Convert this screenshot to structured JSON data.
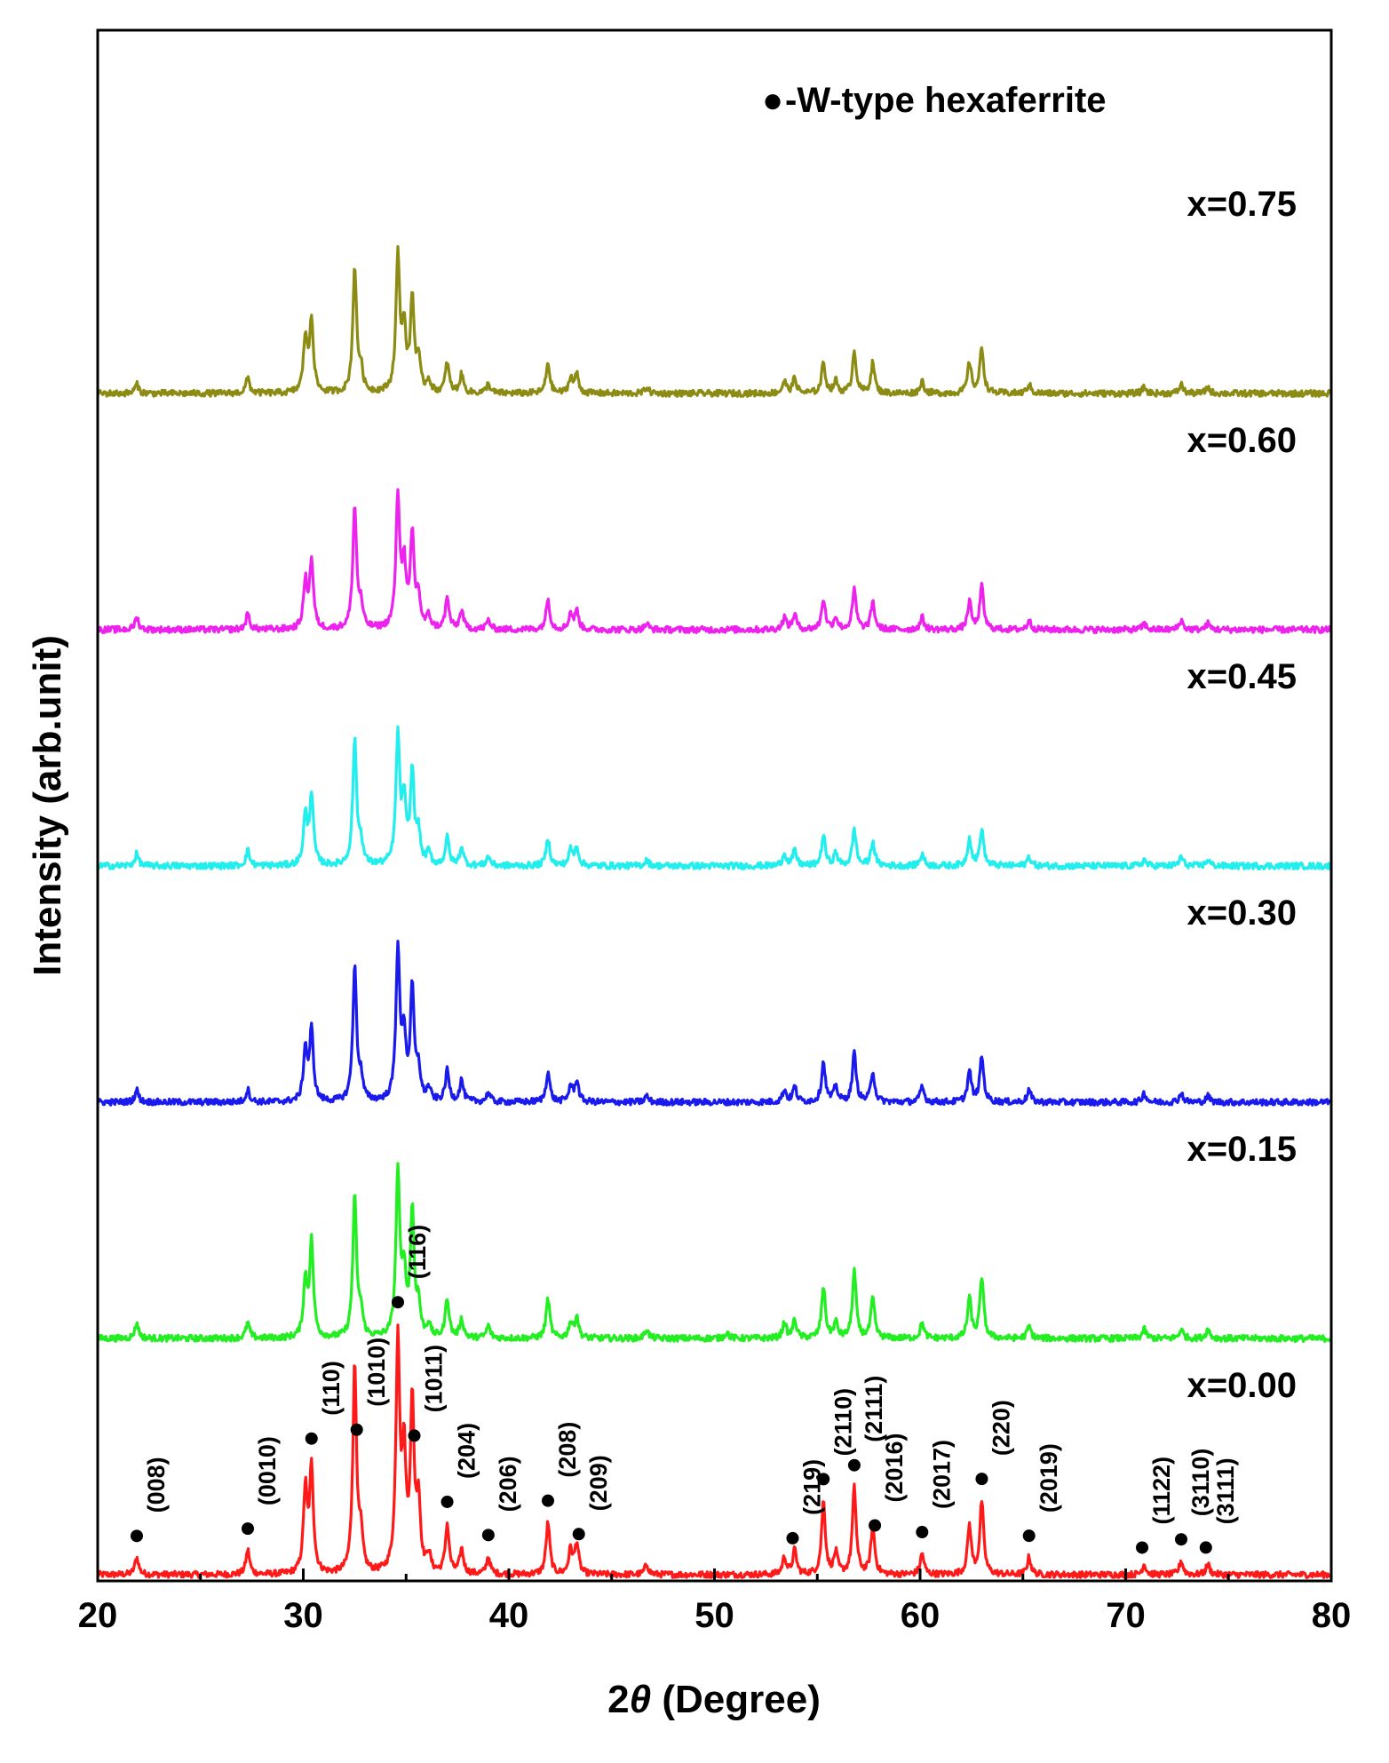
{
  "chart_data": {
    "type": "line",
    "title": "",
    "xlabel_prefix": "2",
    "xlabel_symbol": "θ",
    "xlabel_suffix": " (Degree)",
    "ylabel": "Intensity (arb.unit)",
    "xlim": [
      20,
      80
    ],
    "xticks": [
      20,
      30,
      40,
      50,
      60,
      70,
      80
    ],
    "x_minor_step": 5,
    "yticks_shown": false,
    "legend": {
      "marker": "●",
      "text": "-W-type hexaferrite",
      "position": "top-right"
    },
    "series": [
      {
        "name": "x=0.00",
        "color": "#ff1a1a",
        "offset": 0,
        "scale": 1.0,
        "peaks": [
          [
            21.9,
            0.05
          ],
          [
            27.3,
            0.07
          ],
          [
            30.1,
            0.24
          ],
          [
            30.4,
            0.3
          ],
          [
            32.5,
            0.6
          ],
          [
            32.8,
            0.1
          ],
          [
            34.6,
            0.67
          ],
          [
            34.9,
            0.32
          ],
          [
            35.3,
            0.48
          ],
          [
            35.6,
            0.2
          ],
          [
            36.1,
            0.05
          ],
          [
            37.0,
            0.14
          ],
          [
            37.7,
            0.07
          ],
          [
            39.0,
            0.05
          ],
          [
            41.9,
            0.15
          ],
          [
            43.0,
            0.07
          ],
          [
            43.3,
            0.09
          ],
          [
            46.7,
            0.03
          ],
          [
            53.4,
            0.05
          ],
          [
            53.9,
            0.07
          ],
          [
            55.3,
            0.21
          ],
          [
            55.9,
            0.06
          ],
          [
            56.8,
            0.25
          ],
          [
            57.7,
            0.14
          ],
          [
            60.1,
            0.06
          ],
          [
            62.4,
            0.14
          ],
          [
            63.0,
            0.21
          ],
          [
            65.3,
            0.05
          ],
          [
            70.9,
            0.03
          ],
          [
            72.7,
            0.04
          ],
          [
            74.0,
            0.03
          ]
        ]
      },
      {
        "name": "x=0.15",
        "color": "#22ee22",
        "offset": 1,
        "scale": 0.88,
        "peaks": [
          [
            21.9,
            0.05
          ],
          [
            27.3,
            0.05
          ],
          [
            30.1,
            0.18
          ],
          [
            30.4,
            0.31
          ],
          [
            32.5,
            0.46
          ],
          [
            32.8,
            0.08
          ],
          [
            34.6,
            0.54
          ],
          [
            34.9,
            0.2
          ],
          [
            35.3,
            0.41
          ],
          [
            35.6,
            0.1
          ],
          [
            36.1,
            0.04
          ],
          [
            37.0,
            0.13
          ],
          [
            37.7,
            0.06
          ],
          [
            39.0,
            0.04
          ],
          [
            41.9,
            0.13
          ],
          [
            43.0,
            0.05
          ],
          [
            43.3,
            0.07
          ],
          [
            46.7,
            0.03
          ],
          [
            50.6,
            0.02
          ],
          [
            53.4,
            0.05
          ],
          [
            53.9,
            0.06
          ],
          [
            55.3,
            0.17
          ],
          [
            55.9,
            0.05
          ],
          [
            56.8,
            0.22
          ],
          [
            57.7,
            0.13
          ],
          [
            60.1,
            0.05
          ],
          [
            62.4,
            0.13
          ],
          [
            63.0,
            0.2
          ],
          [
            65.3,
            0.04
          ],
          [
            70.9,
            0.03
          ],
          [
            72.7,
            0.03
          ],
          [
            74.0,
            0.03
          ]
        ]
      },
      {
        "name": "x=0.30",
        "color": "#1a1aee",
        "offset": 2,
        "scale": 0.88,
        "peaks": [
          [
            21.9,
            0.04
          ],
          [
            27.3,
            0.04
          ],
          [
            30.1,
            0.17
          ],
          [
            30.4,
            0.23
          ],
          [
            32.5,
            0.44
          ],
          [
            32.8,
            0.07
          ],
          [
            34.6,
            0.5
          ],
          [
            34.9,
            0.2
          ],
          [
            35.3,
            0.36
          ],
          [
            35.6,
            0.1
          ],
          [
            36.1,
            0.04
          ],
          [
            37.0,
            0.1
          ],
          [
            37.7,
            0.07
          ],
          [
            39.0,
            0.03
          ],
          [
            41.9,
            0.1
          ],
          [
            43.0,
            0.05
          ],
          [
            43.3,
            0.07
          ],
          [
            46.7,
            0.02
          ],
          [
            53.4,
            0.04
          ],
          [
            53.9,
            0.05
          ],
          [
            55.3,
            0.13
          ],
          [
            55.9,
            0.05
          ],
          [
            56.8,
            0.16
          ],
          [
            57.7,
            0.1
          ],
          [
            60.1,
            0.05
          ],
          [
            62.4,
            0.1
          ],
          [
            63.0,
            0.15
          ],
          [
            65.3,
            0.04
          ],
          [
            70.9,
            0.03
          ],
          [
            72.7,
            0.03
          ],
          [
            74.0,
            0.02
          ]
        ]
      },
      {
        "name": "x=0.45",
        "color": "#22eeee",
        "offset": 3,
        "scale": 0.88,
        "peaks": [
          [
            21.9,
            0.04
          ],
          [
            27.3,
            0.05
          ],
          [
            30.1,
            0.16
          ],
          [
            30.4,
            0.23
          ],
          [
            32.5,
            0.41
          ],
          [
            32.8,
            0.07
          ],
          [
            34.6,
            0.42
          ],
          [
            34.9,
            0.2
          ],
          [
            35.3,
            0.3
          ],
          [
            35.6,
            0.1
          ],
          [
            36.1,
            0.04
          ],
          [
            37.0,
            0.09
          ],
          [
            37.7,
            0.06
          ],
          [
            39.0,
            0.03
          ],
          [
            41.9,
            0.09
          ],
          [
            43.0,
            0.05
          ],
          [
            43.3,
            0.06
          ],
          [
            46.7,
            0.02
          ],
          [
            53.4,
            0.04
          ],
          [
            53.9,
            0.05
          ],
          [
            55.3,
            0.1
          ],
          [
            55.9,
            0.04
          ],
          [
            56.8,
            0.12
          ],
          [
            57.7,
            0.08
          ],
          [
            60.1,
            0.04
          ],
          [
            62.4,
            0.09
          ],
          [
            63.0,
            0.12
          ],
          [
            65.3,
            0.03
          ],
          [
            70.9,
            0.02
          ],
          [
            72.7,
            0.03
          ],
          [
            74.0,
            0.02
          ]
        ]
      },
      {
        "name": "x=0.60",
        "color": "#ee22ee",
        "offset": 4,
        "scale": 0.88,
        "peaks": [
          [
            21.9,
            0.04
          ],
          [
            27.3,
            0.05
          ],
          [
            30.1,
            0.15
          ],
          [
            30.4,
            0.22
          ],
          [
            32.5,
            0.4
          ],
          [
            32.8,
            0.07
          ],
          [
            34.6,
            0.43
          ],
          [
            34.9,
            0.2
          ],
          [
            35.3,
            0.3
          ],
          [
            35.6,
            0.1
          ],
          [
            36.1,
            0.04
          ],
          [
            37.0,
            0.1
          ],
          [
            37.7,
            0.06
          ],
          [
            39.0,
            0.03
          ],
          [
            41.9,
            0.1
          ],
          [
            43.0,
            0.05
          ],
          [
            43.3,
            0.06
          ],
          [
            46.7,
            0.02
          ],
          [
            53.4,
            0.04
          ],
          [
            53.9,
            0.05
          ],
          [
            55.3,
            0.1
          ],
          [
            55.9,
            0.04
          ],
          [
            56.8,
            0.13
          ],
          [
            57.7,
            0.09
          ],
          [
            60.1,
            0.04
          ],
          [
            62.4,
            0.09
          ],
          [
            63.0,
            0.14
          ],
          [
            65.3,
            0.03
          ],
          [
            70.9,
            0.02
          ],
          [
            72.7,
            0.03
          ],
          [
            74.0,
            0.02
          ]
        ]
      },
      {
        "name": "x=0.75",
        "color": "#8c8c14",
        "offset": 5,
        "scale": 0.88,
        "peaks": [
          [
            21.9,
            0.03
          ],
          [
            27.3,
            0.05
          ],
          [
            30.1,
            0.18
          ],
          [
            30.4,
            0.24
          ],
          [
            32.5,
            0.41
          ],
          [
            32.8,
            0.07
          ],
          [
            34.6,
            0.44
          ],
          [
            34.9,
            0.2
          ],
          [
            35.3,
            0.3
          ],
          [
            35.6,
            0.1
          ],
          [
            36.1,
            0.04
          ],
          [
            37.0,
            0.1
          ],
          [
            37.7,
            0.06
          ],
          [
            39.0,
            0.03
          ],
          [
            41.9,
            0.1
          ],
          [
            43.0,
            0.05
          ],
          [
            43.3,
            0.06
          ],
          [
            46.7,
            0.02
          ],
          [
            53.4,
            0.04
          ],
          [
            53.9,
            0.05
          ],
          [
            55.3,
            0.1
          ],
          [
            55.9,
            0.04
          ],
          [
            56.8,
            0.14
          ],
          [
            57.7,
            0.1
          ],
          [
            60.1,
            0.04
          ],
          [
            62.4,
            0.1
          ],
          [
            63.0,
            0.15
          ],
          [
            65.3,
            0.03
          ],
          [
            70.9,
            0.02
          ],
          [
            72.7,
            0.03
          ],
          [
            74.0,
            0.02
          ]
        ]
      }
    ],
    "hkl_labels": [
      {
        "x": 21.9,
        "label": "(008)"
      },
      {
        "x": 27.3,
        "label": "(0010)"
      },
      {
        "x": 30.4,
        "label": "(110)"
      },
      {
        "x": 32.6,
        "label": "(1010)"
      },
      {
        "x": 34.6,
        "label": "(116)"
      },
      {
        "x": 35.4,
        "label": "(1011)"
      },
      {
        "x": 37.0,
        "label": "(204)"
      },
      {
        "x": 39.0,
        "label": "(206)"
      },
      {
        "x": 41.9,
        "label": "(208)"
      },
      {
        "x": 43.4,
        "label": "(209)"
      },
      {
        "x": 53.8,
        "label": "(219)"
      },
      {
        "x": 55.3,
        "label": "(2110)"
      },
      {
        "x": 56.8,
        "label": "(2111)"
      },
      {
        "x": 57.8,
        "label": "(2016)"
      },
      {
        "x": 60.1,
        "label": "(2017)"
      },
      {
        "x": 63.0,
        "label": "(220)"
      },
      {
        "x": 65.3,
        "label": "(2019)"
      },
      {
        "x": 70.8,
        "label": "(1122)"
      },
      {
        "x": 72.7,
        "label": "(3110)"
      },
      {
        "x": 73.9,
        "label": "(3111)"
      }
    ]
  }
}
